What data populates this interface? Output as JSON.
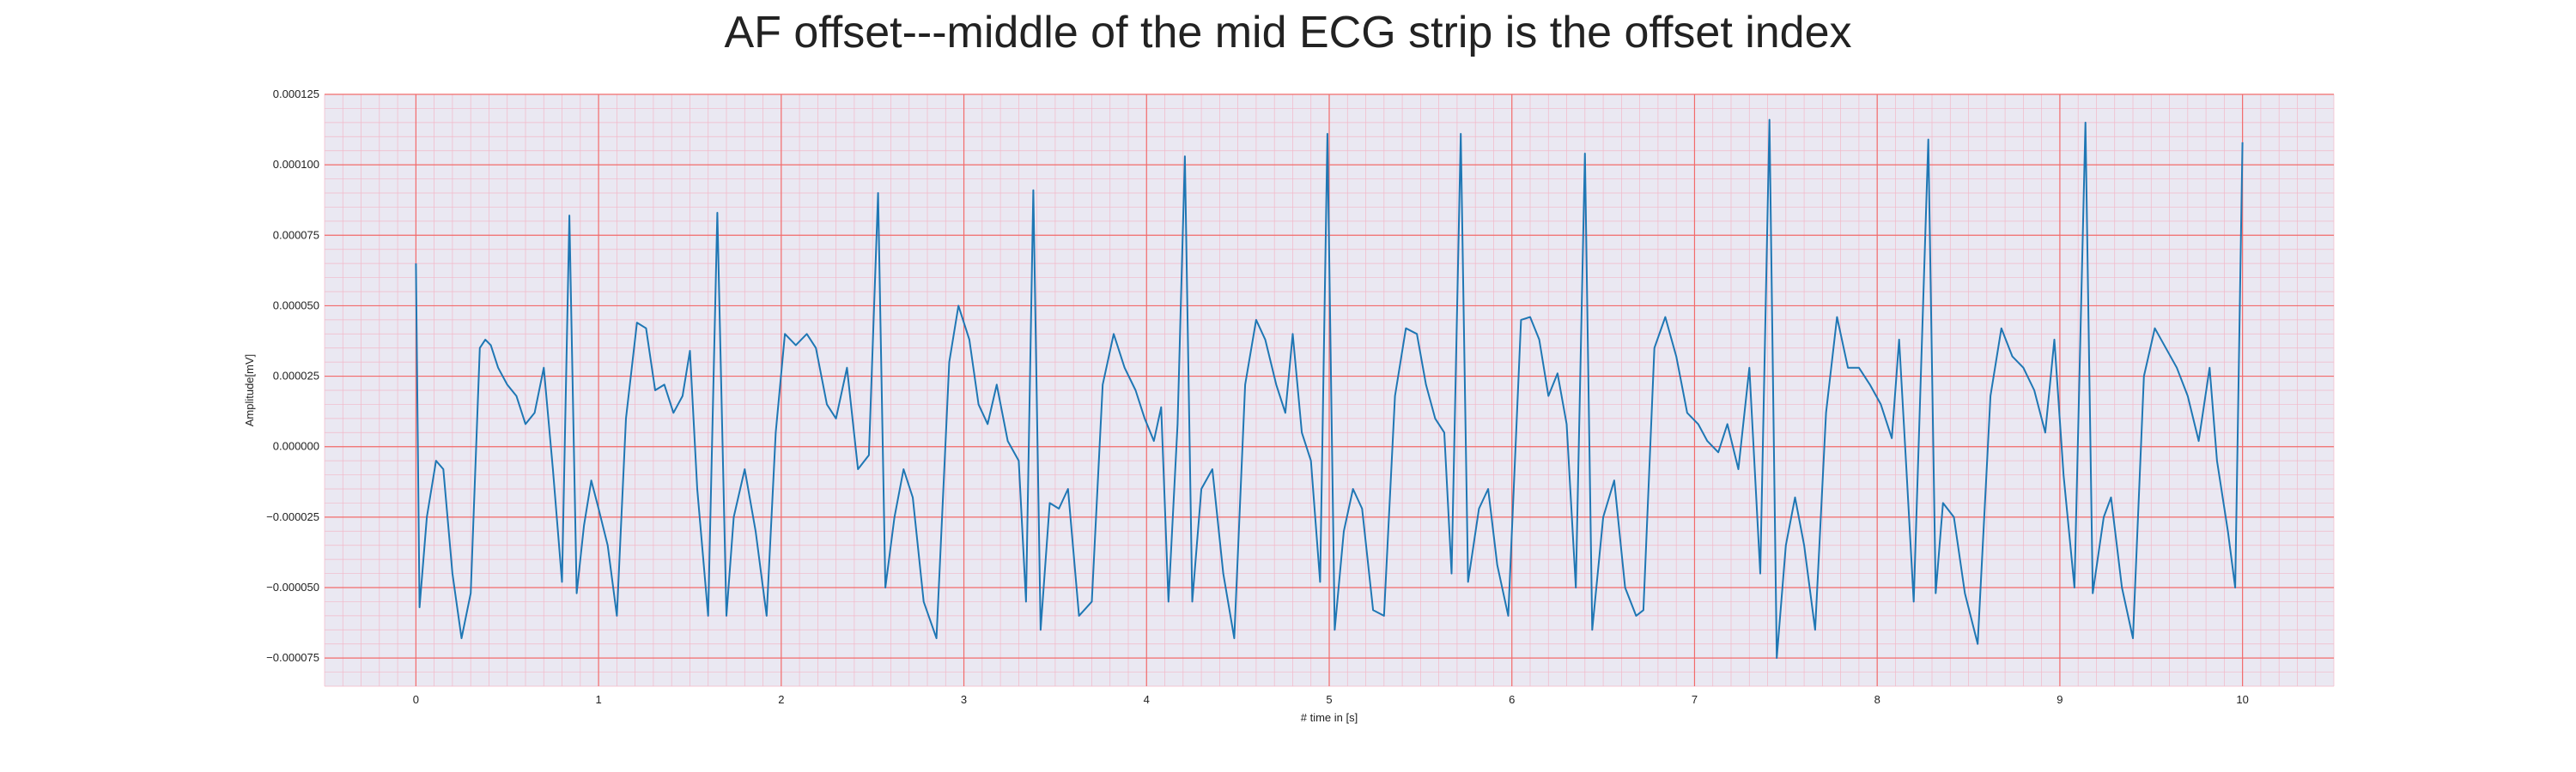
{
  "chart_data": {
    "type": "line",
    "title": "AF offset---middle of the mid ECG strip is the offset index",
    "xlabel": "# time in [s]",
    "ylabel": "Amplitude[mV]",
    "xlim": [
      -0.5,
      10.5
    ],
    "ylim": [
      -8.5e-05,
      0.000125
    ],
    "x_ticks": [
      0,
      1,
      2,
      3,
      4,
      5,
      6,
      7,
      8,
      9,
      10
    ],
    "x_tick_labels": [
      "0",
      "1",
      "2",
      "3",
      "4",
      "5",
      "6",
      "7",
      "8",
      "9",
      "10"
    ],
    "y_ticks": [
      -7.5e-05,
      -5e-05,
      -2.5e-05,
      0,
      2.5e-05,
      5e-05,
      7.5e-05,
      0.0001,
      0.000125
    ],
    "y_tick_labels": [
      "−0.000075",
      "−0.000050",
      "−0.000025",
      "0.000000",
      "0.000025",
      "0.000050",
      "0.000075",
      "0.000100",
      "0.000125"
    ],
    "grid": true,
    "background_color": "#eae8f2",
    "major_grid_color": "#f26b6b",
    "minor_grid_color": "#f2b8c8",
    "series": [
      {
        "color": "#1f77b4",
        "points": [
          [
            0.0,
            6.5e-05
          ],
          [
            0.02,
            -5.7e-05
          ],
          [
            0.06,
            -2.5e-05
          ],
          [
            0.11,
            -5e-06
          ],
          [
            0.15,
            -8e-06
          ],
          [
            0.2,
            -4.5e-05
          ],
          [
            0.25,
            -6.8e-05
          ],
          [
            0.3,
            -5.2e-05
          ],
          [
            0.35,
            3.5e-05
          ],
          [
            0.38,
            3.8e-05
          ],
          [
            0.41,
            3.6e-05
          ],
          [
            0.45,
            2.8e-05
          ],
          [
            0.5,
            2.2e-05
          ],
          [
            0.55,
            1.8e-05
          ],
          [
            0.6,
            8e-06
          ],
          [
            0.65,
            1.2e-05
          ],
          [
            0.7,
            2.8e-05
          ],
          [
            0.75,
            -8e-06
          ],
          [
            0.8,
            -4.8e-05
          ],
          [
            0.84,
            8.2e-05
          ],
          [
            0.88,
            -5.2e-05
          ],
          [
            0.92,
            -2.8e-05
          ],
          [
            0.96,
            -1.2e-05
          ],
          [
            1.0,
            -2.2e-05
          ],
          [
            1.05,
            -3.5e-05
          ],
          [
            1.1,
            -6e-05
          ],
          [
            1.15,
            1e-05
          ],
          [
            1.21,
            4.4e-05
          ],
          [
            1.26,
            4.2e-05
          ],
          [
            1.31,
            2e-05
          ],
          [
            1.36,
            2.2e-05
          ],
          [
            1.41,
            1.2e-05
          ],
          [
            1.46,
            1.8e-05
          ],
          [
            1.5,
            3.4e-05
          ],
          [
            1.54,
            -1.5e-05
          ],
          [
            1.6,
            -6e-05
          ],
          [
            1.65,
            8.3e-05
          ],
          [
            1.7,
            -6e-05
          ],
          [
            1.74,
            -2.5e-05
          ],
          [
            1.8,
            -8e-06
          ],
          [
            1.86,
            -3e-05
          ],
          [
            1.92,
            -6e-05
          ],
          [
            1.97,
            5e-06
          ],
          [
            2.02,
            4e-05
          ],
          [
            2.08,
            3.6e-05
          ],
          [
            2.14,
            4e-05
          ],
          [
            2.19,
            3.5e-05
          ],
          [
            2.25,
            1.5e-05
          ],
          [
            2.3,
            1e-05
          ],
          [
            2.36,
            2.8e-05
          ],
          [
            2.42,
            -8e-06
          ],
          [
            2.48,
            -3e-06
          ],
          [
            2.53,
            9e-05
          ],
          [
            2.57,
            -5e-05
          ],
          [
            2.62,
            -2.5e-05
          ],
          [
            2.67,
            -8e-06
          ],
          [
            2.72,
            -1.8e-05
          ],
          [
            2.78,
            -5.5e-05
          ],
          [
            2.85,
            -6.8e-05
          ],
          [
            2.92,
            3e-05
          ],
          [
            2.97,
            5e-05
          ],
          [
            3.03,
            3.8e-05
          ],
          [
            3.08,
            1.5e-05
          ],
          [
            3.13,
            8e-06
          ],
          [
            3.18,
            2.2e-05
          ],
          [
            3.24,
            2e-06
          ],
          [
            3.3,
            -5e-06
          ],
          [
            3.34,
            -5.5e-05
          ],
          [
            3.38,
            9.1e-05
          ],
          [
            3.42,
            -6.5e-05
          ],
          [
            3.47,
            -2e-05
          ],
          [
            3.52,
            -2.2e-05
          ],
          [
            3.57,
            -1.5e-05
          ],
          [
            3.63,
            -6e-05
          ],
          [
            3.7,
            -5.5e-05
          ],
          [
            3.76,
            2.2e-05
          ],
          [
            3.82,
            4e-05
          ],
          [
            3.88,
            2.8e-05
          ],
          [
            3.94,
            2e-05
          ],
          [
            3.99,
            1e-05
          ],
          [
            4.04,
            2e-06
          ],
          [
            4.08,
            1.4e-05
          ],
          [
            4.12,
            -5.5e-05
          ],
          [
            4.17,
            8e-06
          ],
          [
            4.21,
            0.000103
          ],
          [
            4.25,
            -5.5e-05
          ],
          [
            4.3,
            -1.5e-05
          ],
          [
            4.36,
            -8e-06
          ],
          [
            4.42,
            -4.5e-05
          ],
          [
            4.48,
            -6.8e-05
          ],
          [
            4.54,
            2.2e-05
          ],
          [
            4.6,
            4.5e-05
          ],
          [
            4.65,
            3.8e-05
          ],
          [
            4.71,
            2.2e-05
          ],
          [
            4.76,
            1.2e-05
          ],
          [
            4.8,
            4e-05
          ],
          [
            4.85,
            5e-06
          ],
          [
            4.9,
            -5e-06
          ],
          [
            4.95,
            -4.8e-05
          ],
          [
            4.99,
            0.000111
          ],
          [
            5.03,
            -6.5e-05
          ],
          [
            5.08,
            -3e-05
          ],
          [
            5.13,
            -1.5e-05
          ],
          [
            5.18,
            -2.2e-05
          ],
          [
            5.24,
            -5.8e-05
          ],
          [
            5.3,
            -6e-05
          ],
          [
            5.36,
            1.8e-05
          ],
          [
            5.42,
            4.2e-05
          ],
          [
            5.48,
            4e-05
          ],
          [
            5.53,
            2.2e-05
          ],
          [
            5.58,
            1e-05
          ],
          [
            5.63,
            5e-06
          ],
          [
            5.67,
            -4.5e-05
          ],
          [
            5.72,
            0.000111
          ],
          [
            5.76,
            -4.8e-05
          ],
          [
            5.82,
            -2.2e-05
          ],
          [
            5.87,
            -1.5e-05
          ],
          [
            5.92,
            -4.2e-05
          ],
          [
            5.98,
            -6e-05
          ],
          [
            6.05,
            4.5e-05
          ],
          [
            6.1,
            4.6e-05
          ],
          [
            6.15,
            3.8e-05
          ],
          [
            6.2,
            1.8e-05
          ],
          [
            6.25,
            2.6e-05
          ],
          [
            6.3,
            8e-06
          ],
          [
            6.35,
            -5e-05
          ],
          [
            6.4,
            0.000104
          ],
          [
            6.44,
            -6.5e-05
          ],
          [
            6.5,
            -2.5e-05
          ],
          [
            6.56,
            -1.2e-05
          ],
          [
            6.62,
            -5e-05
          ],
          [
            6.68,
            -6e-05
          ],
          [
            6.72,
            -5.8e-05
          ],
          [
            6.78,
            3.5e-05
          ],
          [
            6.84,
            4.6e-05
          ],
          [
            6.9,
            3.2e-05
          ],
          [
            6.96,
            1.2e-05
          ],
          [
            7.02,
            8e-06
          ],
          [
            7.07,
            2e-06
          ],
          [
            7.13,
            -2e-06
          ],
          [
            7.18,
            8e-06
          ],
          [
            7.24,
            -8e-06
          ],
          [
            7.3,
            2.8e-05
          ],
          [
            7.36,
            -4.5e-05
          ],
          [
            7.41,
            0.000116
          ],
          [
            7.45,
            -7.5e-05
          ],
          [
            7.5,
            -3.5e-05
          ],
          [
            7.55,
            -1.8e-05
          ],
          [
            7.6,
            -3.5e-05
          ],
          [
            7.66,
            -6.5e-05
          ],
          [
            7.72,
            1.2e-05
          ],
          [
            7.78,
            4.6e-05
          ],
          [
            7.84,
            2.8e-05
          ],
          [
            7.9,
            2.8e-05
          ],
          [
            7.96,
            2.2e-05
          ],
          [
            8.02,
            1.5e-05
          ],
          [
            8.08,
            3e-06
          ],
          [
            8.12,
            3.8e-05
          ],
          [
            8.16,
            -8e-06
          ],
          [
            8.2,
            -5.5e-05
          ],
          [
            8.28,
            0.000109
          ],
          [
            8.32,
            -5.2e-05
          ],
          [
            8.36,
            -2e-05
          ],
          [
            8.42,
            -2.5e-05
          ],
          [
            8.48,
            -5.2e-05
          ],
          [
            8.55,
            -7e-05
          ],
          [
            8.62,
            1.8e-05
          ],
          [
            8.68,
            4.2e-05
          ],
          [
            8.74,
            3.2e-05
          ],
          [
            8.8,
            2.8e-05
          ],
          [
            8.86,
            2e-05
          ],
          [
            8.92,
            5e-06
          ],
          [
            8.97,
            3.8e-05
          ],
          [
            9.02,
            -1e-05
          ],
          [
            9.08,
            -5e-05
          ],
          [
            9.14,
            0.000115
          ],
          [
            9.18,
            -5.2e-05
          ],
          [
            9.24,
            -2.5e-05
          ],
          [
            9.28,
            -1.8e-05
          ],
          [
            9.34,
            -5e-05
          ],
          [
            9.4,
            -6.8e-05
          ],
          [
            9.46,
            2.5e-05
          ],
          [
            9.52,
            4.2e-05
          ],
          [
            9.58,
            3.5e-05
          ],
          [
            9.64,
            2.8e-05
          ],
          [
            9.7,
            1.8e-05
          ],
          [
            9.76,
            2e-06
          ],
          [
            9.82,
            2.8e-05
          ],
          [
            9.86,
            -5e-06
          ],
          [
            9.92,
            -3e-05
          ],
          [
            9.96,
            -5e-05
          ],
          [
            10.0,
            0.000108
          ]
        ]
      }
    ]
  }
}
